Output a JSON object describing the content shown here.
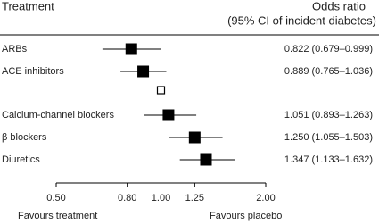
{
  "chart_data": {
    "type": "forest",
    "y_label": "Treatment",
    "value_title": "Odds ratio",
    "value_subtitle": "(95% CI of incident diabetes)",
    "categories": [
      "ARBs",
      "ACE inhibitors",
      null,
      "Calcium-channel blockers",
      "β blockers",
      "Diuretics"
    ],
    "values": [
      0.822,
      0.889,
      1,
      1.051,
      1.25,
      1.347
    ],
    "lower": [
      0.679,
      0.765,
      null,
      0.893,
      1.055,
      1.133
    ],
    "upper": [
      0.999,
      1.036,
      null,
      1.263,
      1.503,
      1.632
    ],
    "value_labels": [
      "0.822 (0.679–0.999)",
      "0.889 (0.765–1.036)",
      null,
      "1.051 (0.893–1.263)",
      "1.250 (1.055–1.503)",
      "1.347 (1.133–1.632)"
    ],
    "color": "#000000",
    "log_x": true,
    "xlim": [
      0.5,
      2
    ],
    "xticks": [
      {
        "value": 0.5,
        "label": "0.50"
      },
      {
        "value": 0.8,
        "label": "0.80"
      },
      {
        "value": 1,
        "label": "1.00"
      },
      1.25,
      {
        "value": 2,
        "label": "2.00"
      }
    ],
    "reference_line": 1,
    "annotations": [
      "Favours treatment",
      "Favours placebo"
    ]
  }
}
